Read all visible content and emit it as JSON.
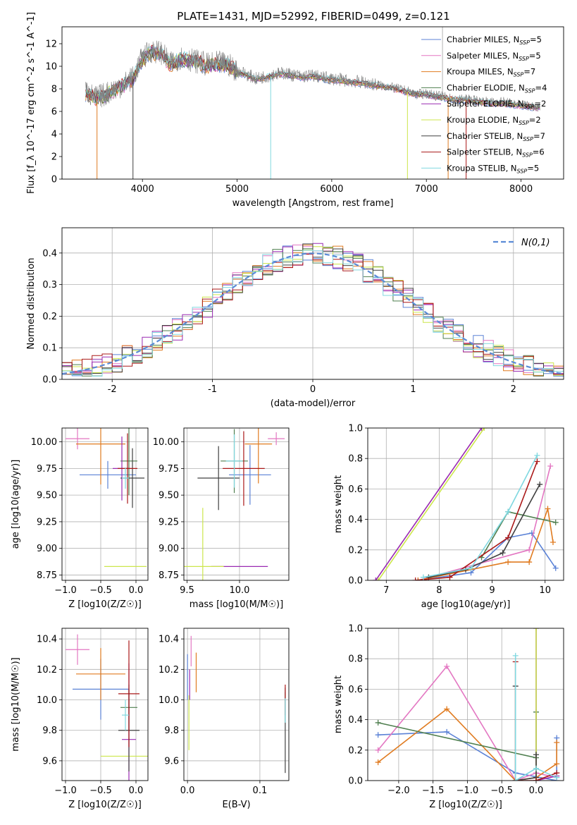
{
  "figure_title": "PLATE=1431, MJD=52992, FIBERID=0499, z=0.121",
  "models": [
    {
      "name": "Chabrier MILES",
      "nssp": "5",
      "color": "#5b82d6"
    },
    {
      "name": "Salpeter MILES",
      "nssp": "5",
      "color": "#e377c2"
    },
    {
      "name": "Kroupa MILES",
      "nssp": "7",
      "color": "#e07b20"
    },
    {
      "name": "Chabrier ELODIE",
      "nssp": "4",
      "color": "#4f7f4f"
    },
    {
      "name": "Salpeter ELODIE",
      "nssp": "2",
      "color": "#9a2ab2"
    },
    {
      "name": "Kroupa ELODIE",
      "nssp": "2",
      "color": "#cce64c"
    },
    {
      "name": "Chabrier STELIB",
      "nssp": "7",
      "color": "#404040"
    },
    {
      "name": "Salpeter STELIB",
      "nssp": "6",
      "color": "#aa1818"
    },
    {
      "name": "Kroupa STELIB",
      "nssp": "5",
      "color": "#80d8e0"
    }
  ],
  "legend_nssp_prefix": "N",
  "legend_nssp_sub": "SSP",
  "chart_data": [
    {
      "id": "spectrum",
      "type": "line",
      "xlabel": "wavelength [Angstrom, rest frame]",
      "ylabel": "Flux [f_λ 10^-17 erg cm^-2 s^-1 A^-1]",
      "xlim": [
        3150,
        8450
      ],
      "ylim": [
        0,
        13.5
      ],
      "xticks": [
        4000,
        5000,
        6000,
        7000,
        8000
      ],
      "yticks": [
        0,
        2,
        4,
        6,
        8,
        10,
        12
      ],
      "legend": "top-right",
      "data_color": "#808080",
      "data_envelope": [
        [
          3400,
          7.8
        ],
        [
          3500,
          7.2
        ],
        [
          3600,
          7.5
        ],
        [
          3700,
          8.0
        ],
        [
          3800,
          8.4
        ],
        [
          3900,
          9.0
        ],
        [
          4000,
          10.8
        ],
        [
          4100,
          11.4
        ],
        [
          4200,
          11.2
        ],
        [
          4300,
          10.2
        ],
        [
          4400,
          10.8
        ],
        [
          4500,
          10.6
        ],
        [
          4600,
          10.4
        ],
        [
          4700,
          10.1
        ],
        [
          4800,
          10.3
        ],
        [
          4900,
          10.2
        ],
        [
          5000,
          9.6
        ],
        [
          5100,
          9.3
        ],
        [
          5200,
          8.9
        ],
        [
          5300,
          9.1
        ],
        [
          5400,
          9.3
        ],
        [
          5500,
          9.4
        ],
        [
          5600,
          9.2
        ],
        [
          5700,
          9.1
        ],
        [
          5800,
          9.2
        ],
        [
          5900,
          9.0
        ],
        [
          6000,
          8.9
        ],
        [
          6100,
          8.8
        ],
        [
          6200,
          8.7
        ],
        [
          6300,
          8.6
        ],
        [
          6400,
          8.5
        ],
        [
          6500,
          8.3
        ],
        [
          6600,
          8.2
        ],
        [
          6700,
          8.0
        ],
        [
          6800,
          7.8
        ],
        [
          6900,
          7.5
        ],
        [
          7000,
          7.6
        ],
        [
          7100,
          7.4
        ],
        [
          7200,
          7.3
        ],
        [
          7300,
          7.0
        ],
        [
          7400,
          7.1
        ],
        [
          7500,
          7.0
        ],
        [
          7600,
          6.9
        ],
        [
          7700,
          6.8
        ],
        [
          7800,
          6.9
        ],
        [
          7900,
          6.7
        ],
        [
          8000,
          6.6
        ],
        [
          8100,
          6.5
        ],
        [
          8200,
          6.4
        ]
      ],
      "model_envelope": [
        [
          3400,
          7.6
        ],
        [
          3500,
          7.1
        ],
        [
          3600,
          7.4
        ],
        [
          3700,
          7.9
        ],
        [
          3800,
          8.3
        ],
        [
          3900,
          8.9
        ],
        [
          4000,
          10.6
        ],
        [
          4100,
          11.2
        ],
        [
          4200,
          11.0
        ],
        [
          4300,
          10.1
        ],
        [
          4400,
          10.6
        ],
        [
          4500,
          10.5
        ],
        [
          4600,
          10.3
        ],
        [
          4700,
          10.0
        ],
        [
          4800,
          10.2
        ],
        [
          4900,
          10.1
        ],
        [
          5000,
          9.5
        ],
        [
          5100,
          9.2
        ],
        [
          5200,
          8.8
        ],
        [
          5300,
          9.0
        ],
        [
          5400,
          9.2
        ],
        [
          5500,
          9.3
        ],
        [
          5600,
          9.1
        ],
        [
          5700,
          9.0
        ],
        [
          5800,
          9.1
        ],
        [
          5900,
          8.9
        ],
        [
          6000,
          8.8
        ],
        [
          6100,
          8.7
        ],
        [
          6200,
          8.6
        ],
        [
          6300,
          8.5
        ],
        [
          6400,
          8.4
        ],
        [
          6500,
          8.2
        ],
        [
          6600,
          8.1
        ],
        [
          6700,
          7.9
        ],
        [
          6800,
          7.7
        ],
        [
          6900,
          7.5
        ],
        [
          7000,
          7.5
        ],
        [
          7100,
          7.3
        ],
        [
          7200,
          7.2
        ],
        [
          7300,
          7.0
        ],
        [
          7400,
          7.0
        ],
        [
          7500,
          6.9
        ],
        [
          7600,
          6.8
        ],
        [
          7700,
          6.7
        ],
        [
          7800,
          6.7
        ],
        [
          7900,
          6.6
        ],
        [
          8000,
          6.5
        ],
        [
          8100,
          6.4
        ],
        [
          8200,
          6.3
        ]
      ],
      "dropouts": [
        {
          "x": 3520,
          "model": 2
        },
        {
          "x": 3900,
          "model": 6
        },
        {
          "x": 5355,
          "model": 8
        },
        {
          "x": 6800,
          "model": 5
        },
        {
          "x": 7230,
          "model": 2
        },
        {
          "x": 7420,
          "model": 7
        }
      ]
    },
    {
      "id": "residuals",
      "type": "histogram",
      "xlabel": "(data-model)/error",
      "ylabel": "Normed distribution",
      "xlim": [
        -2.5,
        2.5
      ],
      "ylim": [
        0,
        0.48
      ],
      "xticks": [
        -2,
        -1,
        0,
        1,
        2
      ],
      "yticks": [
        0.0,
        0.1,
        0.2,
        0.3,
        0.4
      ],
      "bin_width": 0.1,
      "gaussian_label": "N(0,1)",
      "gaussian_color": "#5b8bd6",
      "legend": "top-right"
    },
    {
      "id": "age_vs_Z",
      "type": "errorbar",
      "xlabel": "Z [log10(Z/Z☉)]",
      "ylabel": "age [log10(age/yr)]",
      "xlim": [
        -1.05,
        0.17
      ],
      "ylim": [
        8.7,
        10.13
      ],
      "xticks": [
        -1.0,
        -0.5,
        0.0
      ],
      "yticks": [
        8.75,
        9.0,
        9.25,
        9.5,
        9.75,
        10.0
      ],
      "points": [
        {
          "model": 0,
          "x": -0.4,
          "y": 9.69,
          "xerr": 0.4,
          "yerr": 0.13
        },
        {
          "model": 1,
          "x": -0.83,
          "y": 10.03,
          "xerr": 0.17,
          "yerr": 0.1
        },
        {
          "model": 2,
          "x": -0.5,
          "y": 9.98,
          "xerr": 0.35,
          "yerr": 0.38
        },
        {
          "model": 3,
          "x": -0.1,
          "y": 9.82,
          "xerr": 0.12,
          "yerr": 0.32
        },
        {
          "model": 4,
          "x": -0.2,
          "y": 9.75,
          "xerr": 0.13,
          "yerr": 0.3
        },
        {
          "model": 5,
          "x": -0.15,
          "y": 8.83,
          "xerr": 0.3,
          "yerr": 0.0
        },
        {
          "model": 6,
          "x": -0.05,
          "y": 9.66,
          "xerr": 0.17,
          "yerr": 0.28
        },
        {
          "model": 7,
          "x": -0.12,
          "y": 9.75,
          "xerr": 0.14,
          "yerr": 0.33
        },
        {
          "model": 8,
          "x": -0.15,
          "y": 9.66,
          "xerr": 0.05,
          "yerr": 0.1
        }
      ]
    },
    {
      "id": "age_vs_mass",
      "type": "errorbar",
      "xlabel": "mass [log10(M/M☉)]",
      "ylabel": "",
      "xlim": [
        9.47,
        10.47
      ],
      "ylim": [
        8.7,
        10.13
      ],
      "xticks": [
        9.5,
        10.0
      ],
      "yticks": [
        8.75,
        9.0,
        9.25,
        9.5,
        9.75,
        10.0
      ],
      "points": [
        {
          "model": 0,
          "x": 10.1,
          "y": 9.69,
          "xerr": 0.2,
          "yerr": 0.28
        },
        {
          "model": 1,
          "x": 10.35,
          "y": 10.03,
          "xerr": 0.08,
          "yerr": 0.06
        },
        {
          "model": 2,
          "x": 10.18,
          "y": 9.98,
          "xerr": 0.13,
          "yerr": 0.37
        },
        {
          "model": 3,
          "x": 9.95,
          "y": 9.82,
          "xerr": 0.13,
          "yerr": 0.3
        },
        {
          "model": 4,
          "x": 10.0,
          "y": 8.83,
          "xerr": 0.27,
          "yerr": 0.0
        },
        {
          "model": 5,
          "x": 9.65,
          "y": 8.83,
          "xerr": 0.2,
          "yerr": 0.55
        },
        {
          "model": 6,
          "x": 9.8,
          "y": 9.66,
          "xerr": 0.2,
          "yerr": 0.3
        },
        {
          "model": 7,
          "x": 10.04,
          "y": 9.75,
          "xerr": 0.2,
          "yerr": 0.35
        },
        {
          "model": 8,
          "x": 9.95,
          "y": 9.82,
          "xerr": 0.08,
          "yerr": 0.25
        }
      ]
    },
    {
      "id": "weight_vs_age",
      "type": "line",
      "xlabel": "age [log10(age/yr)]",
      "ylabel": "mass weight",
      "xlim": [
        6.65,
        10.35
      ],
      "ylim": [
        0,
        1
      ],
      "xticks": [
        7,
        8,
        9,
        10
      ],
      "yticks": [
        0.0,
        0.2,
        0.4,
        0.6,
        0.8,
        1.0
      ],
      "series": [
        {
          "model": 0,
          "x": [
            7.6,
            8.6,
            9.3,
            9.75,
            10.2
          ],
          "y": [
            0.0,
            0.05,
            0.28,
            0.31,
            0.08
          ]
        },
        {
          "model": 1,
          "x": [
            7.6,
            9.7,
            10.1
          ],
          "y": [
            0.0,
            0.2,
            0.75
          ]
        },
        {
          "model": 2,
          "x": [
            7.6,
            9.3,
            9.7,
            10.05,
            10.15
          ],
          "y": [
            0.0,
            0.12,
            0.12,
            0.47,
            0.25
          ]
        },
        {
          "model": 3,
          "x": [
            8.8,
            9.3,
            10.2
          ],
          "y": [
            0.15,
            0.45,
            0.38
          ]
        },
        {
          "model": 4,
          "x": [
            6.8,
            8.8
          ],
          "y": [
            0.0,
            1.0
          ]
        },
        {
          "model": 5,
          "x": [
            6.85,
            8.85
          ],
          "y": [
            0.0,
            1.0
          ]
        },
        {
          "model": 6,
          "x": [
            7.8,
            8.5,
            9.2,
            9.9
          ],
          "y": [
            0.02,
            0.07,
            0.18,
            0.63
          ]
        },
        {
          "model": 7,
          "x": [
            7.55,
            8.2,
            9.3,
            9.85
          ],
          "y": [
            0.0,
            0.02,
            0.28,
            0.78
          ]
        },
        {
          "model": 8,
          "x": [
            7.7,
            8.6,
            9.3,
            9.85
          ],
          "y": [
            0.02,
            0.08,
            0.45,
            0.82
          ]
        }
      ]
    },
    {
      "id": "mass_vs_Z",
      "type": "errorbar",
      "xlabel": "Z [log10(Z/Z☉)]",
      "ylabel": "mass [log10(M/M☉)]",
      "xlim": [
        -1.05,
        0.17
      ],
      "ylim": [
        9.47,
        10.47
      ],
      "xticks": [
        -1.0,
        -0.5,
        0.0
      ],
      "yticks": [
        9.6,
        9.8,
        10.0,
        10.2,
        10.4
      ],
      "points": [
        {
          "model": 0,
          "x": -0.5,
          "y": 10.07,
          "xerr": 0.4,
          "yerr": 0.2
        },
        {
          "model": 1,
          "x": -0.83,
          "y": 10.33,
          "xerr": 0.17,
          "yerr": 0.1
        },
        {
          "model": 2,
          "x": -0.5,
          "y": 10.17,
          "xerr": 0.35,
          "yerr": 0.17
        },
        {
          "model": 3,
          "x": -0.1,
          "y": 9.95,
          "xerr": 0.12,
          "yerr": 0.15
        },
        {
          "model": 4,
          "x": -0.1,
          "y": 9.74,
          "xerr": 0.1,
          "yerr": 0.5
        },
        {
          "model": 5,
          "x": -0.15,
          "y": 9.63,
          "xerr": 0.35,
          "yerr": 0.0
        },
        {
          "model": 6,
          "x": -0.1,
          "y": 9.8,
          "xerr": 0.15,
          "yerr": 0.27
        },
        {
          "model": 7,
          "x": -0.1,
          "y": 10.04,
          "xerr": 0.15,
          "yerr": 0.35
        },
        {
          "model": 8,
          "x": -0.15,
          "y": 9.9,
          "xerr": 0.05,
          "yerr": 0.1
        }
      ]
    },
    {
      "id": "mass_vs_EBV",
      "type": "errorbar",
      "xlabel": "E(B-V)",
      "ylabel": "",
      "xlim": [
        -0.005,
        0.14
      ],
      "ylim": [
        9.47,
        10.47
      ],
      "xticks": [
        0.0,
        0.1
      ],
      "yticks": [
        9.6,
        9.8,
        10.0,
        10.2,
        10.4
      ],
      "points": [
        {
          "model": 0,
          "x": 0.0,
          "y": 10.15,
          "xerr": 0.0,
          "yerr": 0.15
        },
        {
          "model": 1,
          "x": 0.005,
          "y": 10.32,
          "xerr": 0.0,
          "yerr": 0.1
        },
        {
          "model": 2,
          "x": 0.012,
          "y": 10.18,
          "xerr": 0.0,
          "yerr": 0.13
        },
        {
          "model": 3,
          "x": 0.135,
          "y": 9.95,
          "xerr": 0.0,
          "yerr": 0.1
        },
        {
          "model": 4,
          "x": 0.003,
          "y": 10.1,
          "xerr": 0.0,
          "yerr": 0.1
        },
        {
          "model": 5,
          "x": 0.002,
          "y": 9.85,
          "xerr": 0.0,
          "yerr": 0.18
        },
        {
          "model": 6,
          "x": 0.135,
          "y": 9.8,
          "xerr": 0.0,
          "yerr": 0.28
        },
        {
          "model": 7,
          "x": 0.135,
          "y": 10.0,
          "xerr": 0.0,
          "yerr": 0.1
        },
        {
          "model": 8,
          "x": 0.135,
          "y": 9.93,
          "xerr": 0.0,
          "yerr": 0.08
        }
      ]
    },
    {
      "id": "weight_vs_Z",
      "type": "line",
      "xlabel": "Z [log10(Z/Z☉)]",
      "ylabel": "mass weight",
      "xlim": [
        -2.45,
        0.4
      ],
      "ylim": [
        0,
        1
      ],
      "xticks": [
        -2.0,
        -1.5,
        -1.0,
        -0.5,
        0.0
      ],
      "yticks": [
        0.0,
        0.2,
        0.4,
        0.6,
        0.8,
        1.0
      ],
      "series": [
        {
          "model": 0,
          "x": [
            -2.3,
            -1.3,
            -0.3,
            0.3,
            0.3
          ],
          "y": [
            0.3,
            0.32,
            0.05,
            0.0,
            0.28
          ]
        },
        {
          "model": 1,
          "x": [
            -2.3,
            -1.3,
            -0.3,
            0.0,
            0.3
          ],
          "y": [
            0.2,
            0.75,
            0.0,
            0.05,
            0.02
          ]
        },
        {
          "model": 2,
          "x": [
            -2.3,
            -1.3,
            -0.3,
            0.0,
            0.3,
            0.3
          ],
          "y": [
            0.12,
            0.47,
            0.0,
            0.02,
            0.11,
            0.25
          ]
        },
        {
          "model": 3,
          "x": [
            -2.3,
            0.0,
            0.0
          ],
          "y": [
            0.38,
            0.15,
            0.45
          ]
        },
        {
          "model": 4,
          "x": [
            0.0,
            0.0,
            0.3
          ],
          "y": [
            1.0,
            0.0,
            0.03
          ]
        },
        {
          "model": 5,
          "x": [
            0.0,
            0.0
          ],
          "y": [
            0.0,
            1.0
          ]
        },
        {
          "model": 6,
          "x": [
            -0.3,
            -0.3,
            0.0,
            0.0
          ],
          "y": [
            0.62,
            0.0,
            0.02,
            0.17
          ]
        },
        {
          "model": 7,
          "x": [
            -0.3,
            -0.3,
            0.0,
            0.3
          ],
          "y": [
            0.78,
            0.0,
            0.0,
            0.05
          ]
        },
        {
          "model": 8,
          "x": [
            -0.3,
            -0.3,
            0.0,
            0.3
          ],
          "y": [
            0.82,
            0.0,
            0.08,
            0.02
          ]
        }
      ]
    }
  ]
}
